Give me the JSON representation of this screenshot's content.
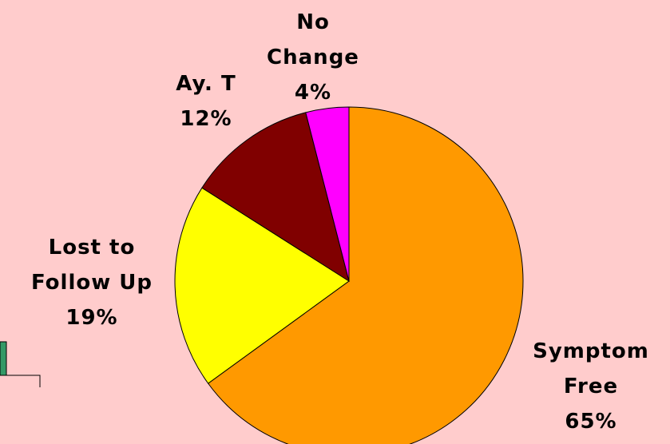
{
  "chart_data": {
    "type": "pie",
    "categories": [
      "Symptom Free",
      "Lost to Follow Up",
      "Ay. T",
      "No Change"
    ],
    "values": [
      65,
      19,
      12,
      4
    ],
    "value_labels": [
      "65%",
      "19%",
      "12%",
      "4%"
    ],
    "colors": [
      "#ff9900",
      "#ffff00",
      "#800000",
      "#ff00ff"
    ]
  }
}
